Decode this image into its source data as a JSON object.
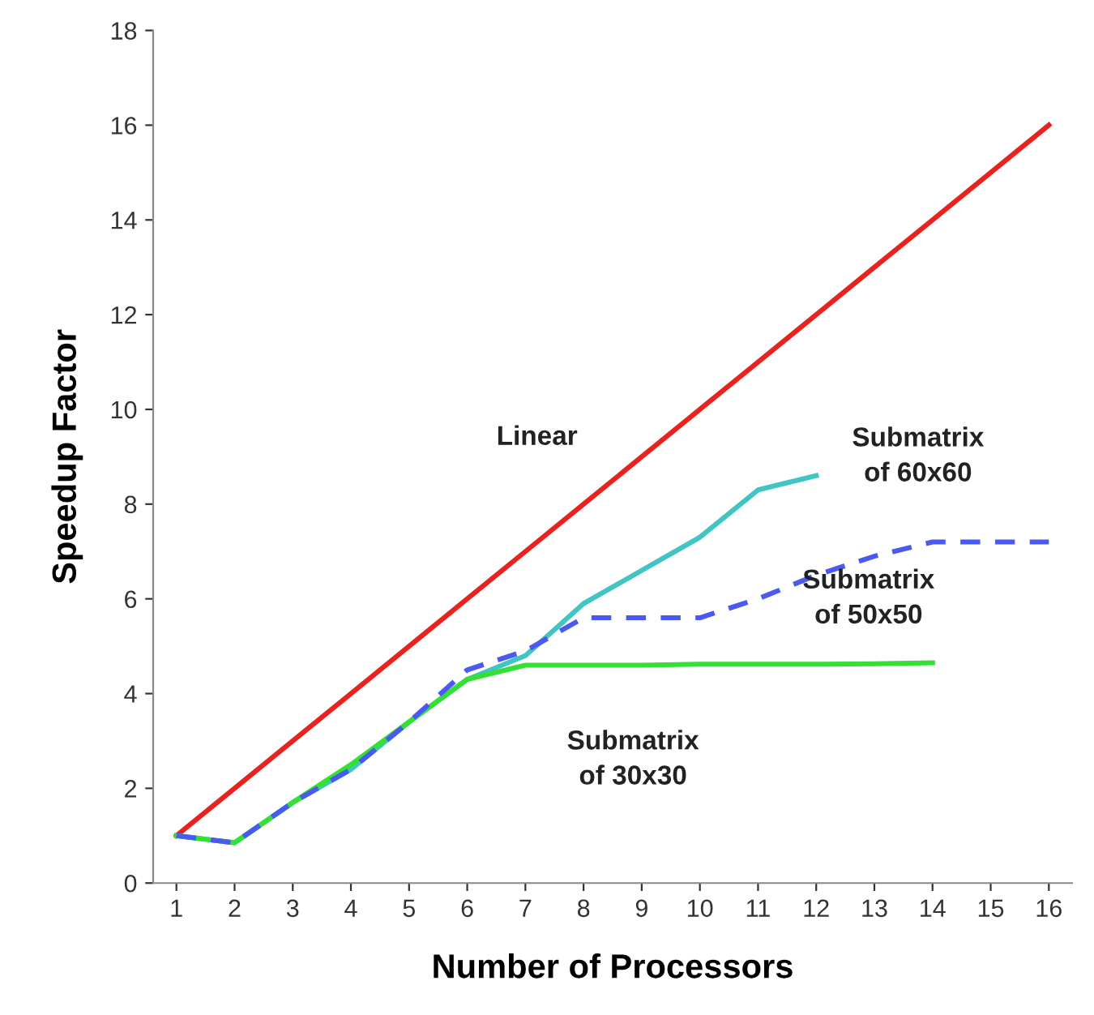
{
  "chart_data": {
    "type": "line",
    "xlabel": "Number of Processors",
    "ylabel": "Speedup Factor",
    "categories": [
      "1",
      "2",
      "3",
      "4",
      "5",
      "6",
      "7",
      "8",
      "9",
      "10",
      "11",
      "12",
      "13",
      "14",
      "15",
      "16"
    ],
    "ylim": [
      0,
      18
    ],
    "yticks": [
      0,
      2,
      4,
      6,
      8,
      10,
      12,
      14,
      16,
      18
    ],
    "grid": false,
    "legend": false,
    "series": [
      {
        "name": "Linear",
        "color": "#e8231f",
        "line_style": "solid",
        "values": [
          1,
          2,
          3,
          4,
          5,
          6,
          7,
          8,
          9,
          10,
          11,
          12,
          13,
          14,
          15,
          16
        ]
      },
      {
        "name": "Submatrix\nof 60x60",
        "color": "#40c4c4",
        "line_style": "solid",
        "values": [
          1,
          0.85,
          1.7,
          2.4,
          3.4,
          4.3,
          4.8,
          5.9,
          6.6,
          7.3,
          8.3,
          8.6,
          null,
          null,
          null,
          null
        ]
      },
      {
        "name": "Submatrix\nof 50x50",
        "color": "#4a5af0",
        "line_style": "dashed",
        "values": [
          1,
          0.85,
          1.7,
          2.4,
          3.4,
          4.5,
          4.9,
          5.6,
          5.6,
          5.6,
          6.0,
          6.5,
          6.9,
          7.2,
          7.2,
          7.2
        ]
      },
      {
        "name": "Submatrix\nof 30x30",
        "color": "#33e033",
        "line_style": "solid",
        "values": [
          1,
          0.85,
          1.7,
          2.5,
          3.4,
          4.3,
          4.6,
          4.6,
          4.6,
          4.62,
          4.62,
          4.62,
          4.63,
          4.65,
          null,
          null
        ]
      }
    ]
  }
}
